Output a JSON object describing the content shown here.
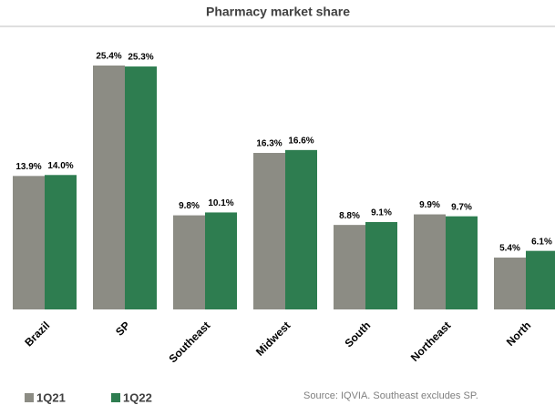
{
  "chart_data": {
    "type": "bar",
    "title": "Pharmacy market share",
    "categories": [
      "Brazil",
      "SP",
      "Southeast",
      "Midwest",
      "South",
      "Northeast",
      "North"
    ],
    "series": [
      {
        "name": "1Q21",
        "color": "#8c8c84",
        "values": [
          13.9,
          25.4,
          9.8,
          16.3,
          8.8,
          9.9,
          5.4
        ],
        "value_labels": [
          "13.9%",
          "25.4%",
          "9.8%",
          "16.3%",
          "8.8%",
          "9.9%",
          "5.4%"
        ]
      },
      {
        "name": "1Q22",
        "color": "#2e7d50",
        "values": [
          14.0,
          25.3,
          10.1,
          16.6,
          9.1,
          9.7,
          6.1
        ],
        "value_labels": [
          "14.0%",
          "25.3%",
          "10.1%",
          "16.6%",
          "9.1%",
          "9.7%",
          "6.1%"
        ]
      }
    ],
    "legend": "bottom-left",
    "annotation": "Source: IQVIA. Southeast excludes SP."
  }
}
